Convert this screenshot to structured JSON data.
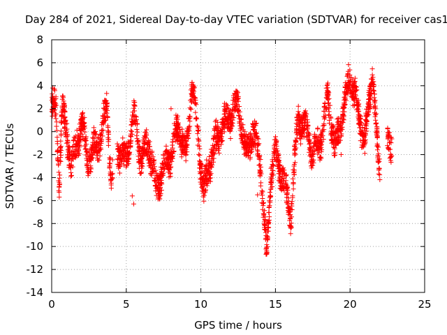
{
  "chart_data": {
    "type": "scatter",
    "title": "Day 284 of 2021, Sidereal Day-to-day VTEC variation (SDTVAR) for receiver cas1",
    "xlabel": "GPS time / hours",
    "ylabel": "SDTVAR / TECUs",
    "xlim": [
      0,
      25
    ],
    "ylim": [
      -14,
      8
    ],
    "x_ticks": [
      0,
      5,
      10,
      15,
      20,
      25
    ],
    "y_ticks": [
      -14,
      -12,
      -10,
      -8,
      -6,
      -4,
      -2,
      0,
      2,
      4,
      6,
      8
    ],
    "grid": true,
    "marker": "+",
    "series_color": "#ff0000",
    "trace_knots": [
      [
        0.0,
        2.2
      ],
      [
        0.3,
        1.8
      ],
      [
        0.5,
        -4.5
      ],
      [
        0.7,
        2.0
      ],
      [
        1.0,
        -0.5
      ],
      [
        1.3,
        -2.5
      ],
      [
        1.6,
        -1.8
      ],
      [
        2.0,
        1.0
      ],
      [
        2.4,
        -2.5
      ],
      [
        2.8,
        -1.5
      ],
      [
        3.2,
        -1.0
      ],
      [
        3.7,
        2.0
      ],
      [
        4.0,
        -4.0
      ],
      [
        4.5,
        -1.5
      ],
      [
        5.0,
        -2.5
      ],
      [
        5.5,
        1.5
      ],
      [
        6.0,
        -2.5
      ],
      [
        6.5,
        -1.0
      ],
      [
        7.0,
        -5.0
      ],
      [
        7.5,
        -3.0
      ],
      [
        8.0,
        -2.0
      ],
      [
        8.5,
        0.5
      ],
      [
        9.0,
        -2.0
      ],
      [
        9.4,
        4.0
      ],
      [
        9.8,
        0.0
      ],
      [
        10.2,
        -5.5
      ],
      [
        10.6,
        -2.5
      ],
      [
        11.0,
        -1.0
      ],
      [
        11.5,
        0.5
      ],
      [
        12.0,
        1.5
      ],
      [
        12.5,
        2.5
      ],
      [
        13.0,
        -2.0
      ],
      [
        13.5,
        0.0
      ],
      [
        14.0,
        -2.5
      ],
      [
        14.4,
        -11.0
      ],
      [
        14.7,
        -3.5
      ],
      [
        15.0,
        -2.0
      ],
      [
        15.5,
        -4.0
      ],
      [
        16.0,
        -7.5
      ],
      [
        16.5,
        1.0
      ],
      [
        17.0,
        0.5
      ],
      [
        17.5,
        -2.0
      ],
      [
        18.0,
        -1.0
      ],
      [
        18.5,
        3.0
      ],
      [
        19.0,
        -1.5
      ],
      [
        19.5,
        1.5
      ],
      [
        20.0,
        5.0
      ],
      [
        20.5,
        2.0
      ],
      [
        21.0,
        -1.0
      ],
      [
        21.5,
        5.5
      ],
      [
        21.9,
        -3.0
      ],
      [
        22.3,
        -1.5
      ],
      [
        22.8,
        -1.0
      ]
    ],
    "gaps": [
      [
        4.1,
        4.4
      ],
      [
        22.0,
        22.5
      ],
      [
        22.9,
        25.0
      ]
    ],
    "stray_points": [
      [
        5.4,
        -5.6
      ],
      [
        5.5,
        -6.3
      ],
      [
        8.0,
        2.0
      ],
      [
        16.3,
        -1.5
      ],
      [
        19.4,
        -2.0
      ],
      [
        13.8,
        -5.5
      ]
    ],
    "n_points": 3000
  }
}
